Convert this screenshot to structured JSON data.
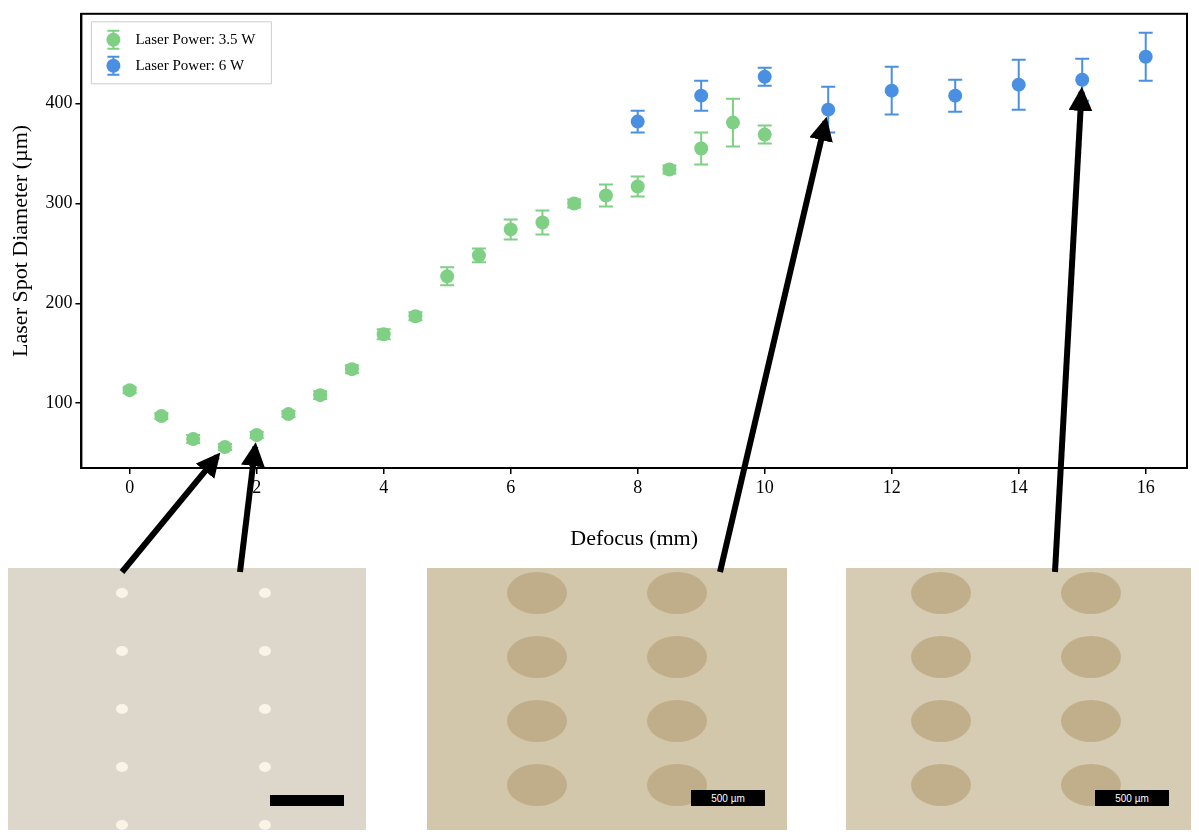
{
  "chart_data": {
    "type": "scatter",
    "x_label": "Defocus (mm)",
    "y_label": "Laser Spot Diameter (µm)",
    "xlim": [
      -0.76,
      16.65
    ],
    "xticks": [
      0,
      2,
      4,
      6,
      8,
      10,
      12,
      14,
      16
    ],
    "ylim": [
      35,
      490
    ],
    "yticks": [
      100,
      200,
      300,
      400
    ],
    "grid": false,
    "legend": "upper left",
    "series": [
      {
        "name": "Laser Power: 3.5 W",
        "color": "#7fcf84",
        "marker": "circle",
        "x": [
          0,
          0.5,
          1,
          1.5,
          2,
          2.5,
          3,
          3.5,
          4,
          4.5,
          5,
          5.5,
          6,
          6.5,
          7,
          7.5,
          8,
          8.5,
          9,
          9.5,
          10
        ],
        "values": [
          113,
          87,
          64,
          56,
          68,
          89,
          108,
          134,
          169,
          187,
          227,
          248,
          274,
          281,
          300,
          308,
          317,
          334,
          355,
          381,
          369
        ],
        "errors": [
          3,
          3,
          4,
          3,
          3,
          3,
          4,
          4,
          5,
          4,
          9,
          7,
          10,
          12,
          4,
          11,
          10,
          4,
          16,
          24,
          9
        ]
      },
      {
        "name": "Laser Power: 6 W",
        "color": "#4a90e2",
        "marker": "circle",
        "x": [
          8,
          9,
          10,
          11,
          12,
          13,
          14,
          15,
          16
        ],
        "values": [
          382,
          408,
          427,
          394,
          413,
          408,
          419,
          424,
          447
        ],
        "errors": [
          11,
          15,
          9,
          23,
          24,
          16,
          25,
          21,
          24
        ]
      }
    ]
  },
  "images": [
    {
      "points_to": {
        "series": "Laser Power: 3.5 W",
        "x": [
          1.5,
          2
        ]
      }
    },
    {
      "points_to": {
        "series": "Laser Power: 6 W",
        "x": [
          11
        ]
      },
      "scale_bar_label": "500 µm"
    },
    {
      "points_to": {
        "series": "Laser Power: 6 W",
        "x": [
          15
        ]
      },
      "scale_bar_label": "500 µm"
    }
  ]
}
